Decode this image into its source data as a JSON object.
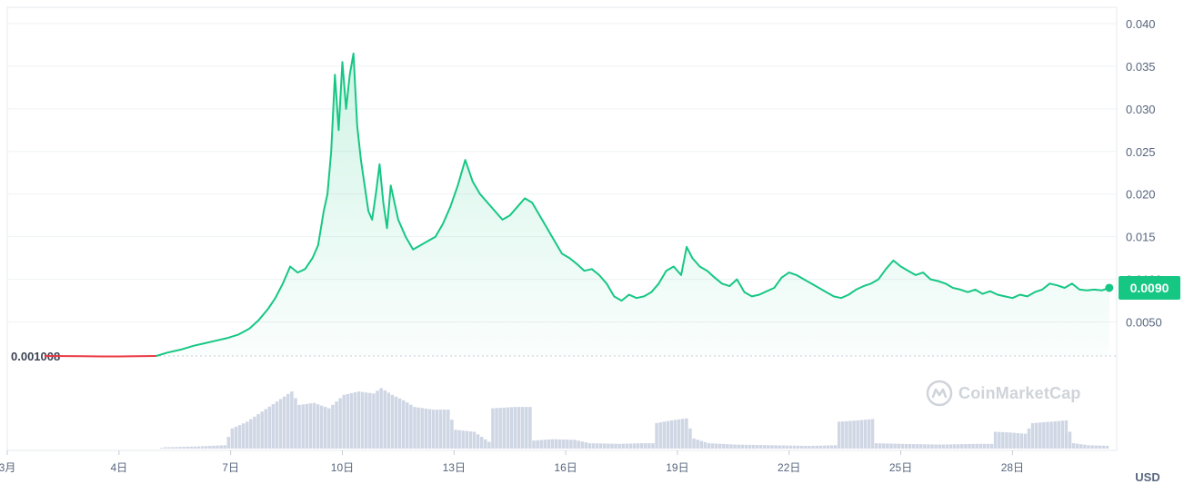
{
  "chart_data": {
    "type": "area",
    "x_tick_labels": [
      "3月",
      "4日",
      "7日",
      "10日",
      "13日",
      "16日",
      "19日",
      "22日",
      "25日",
      "28日"
    ],
    "x_tick_days": [
      1,
      4,
      7,
      10,
      13,
      16,
      19,
      22,
      25,
      28
    ],
    "y_tick_labels": [
      "0.040",
      "0.035",
      "0.030",
      "0.025",
      "0.020",
      "0.015",
      "0.0100",
      "0.0050"
    ],
    "y_tick_values": [
      0.04,
      0.035,
      0.03,
      0.025,
      0.02,
      0.015,
      0.01,
      0.005
    ],
    "ylim": [
      0,
      0.0415
    ],
    "xlim": [
      1,
      30.8
    ],
    "baseline_value": 0.001008,
    "baseline_label": "0.001008",
    "current_value_label": "0.0090",
    "unit_label": "USD",
    "colors": {
      "above_baseline": "#16c784",
      "below_baseline": "#ea3943",
      "volume": "#cfd6e4",
      "grid": "#eff2f5",
      "tick_text": "#58667e"
    },
    "grid": true,
    "series": [
      {
        "points": [
          [
            2.0,
            0.00101
          ],
          [
            2.5,
            0.001
          ],
          [
            3.0,
            0.00099
          ],
          [
            3.5,
            0.00095
          ],
          [
            4.0,
            0.00096
          ],
          [
            4.5,
            0.00098
          ],
          [
            5.0,
            0.00101
          ],
          [
            5.3,
            0.0014
          ],
          [
            5.7,
            0.0018
          ],
          [
            6.0,
            0.0022
          ],
          [
            6.3,
            0.0025
          ],
          [
            6.6,
            0.0028
          ],
          [
            6.9,
            0.0031
          ],
          [
            7.2,
            0.0035
          ],
          [
            7.5,
            0.0042
          ],
          [
            7.75,
            0.0052
          ],
          [
            8.0,
            0.0065
          ],
          [
            8.2,
            0.0078
          ],
          [
            8.4,
            0.0095
          ],
          [
            8.6,
            0.0115
          ],
          [
            8.8,
            0.0108
          ],
          [
            9.0,
            0.0112
          ],
          [
            9.2,
            0.0125
          ],
          [
            9.35,
            0.014
          ],
          [
            9.5,
            0.018
          ],
          [
            9.6,
            0.02
          ],
          [
            9.7,
            0.025
          ],
          [
            9.8,
            0.034
          ],
          [
            9.9,
            0.0275
          ],
          [
            10.0,
            0.0355
          ],
          [
            10.1,
            0.03
          ],
          [
            10.2,
            0.034
          ],
          [
            10.3,
            0.0365
          ],
          [
            10.4,
            0.028
          ],
          [
            10.5,
            0.024
          ],
          [
            10.6,
            0.021
          ],
          [
            10.7,
            0.018
          ],
          [
            10.8,
            0.017
          ],
          [
            10.9,
            0.02
          ],
          [
            11.0,
            0.0235
          ],
          [
            11.1,
            0.019
          ],
          [
            11.2,
            0.016
          ],
          [
            11.3,
            0.021
          ],
          [
            11.5,
            0.017
          ],
          [
            11.7,
            0.015
          ],
          [
            11.9,
            0.0135
          ],
          [
            12.1,
            0.014
          ],
          [
            12.3,
            0.0145
          ],
          [
            12.5,
            0.015
          ],
          [
            12.7,
            0.0165
          ],
          [
            12.9,
            0.0185
          ],
          [
            13.1,
            0.021
          ],
          [
            13.3,
            0.024
          ],
          [
            13.5,
            0.0215
          ],
          [
            13.7,
            0.02
          ],
          [
            13.9,
            0.019
          ],
          [
            14.1,
            0.018
          ],
          [
            14.3,
            0.017
          ],
          [
            14.5,
            0.0175
          ],
          [
            14.7,
            0.0185
          ],
          [
            14.9,
            0.0195
          ],
          [
            15.1,
            0.019
          ],
          [
            15.3,
            0.0175
          ],
          [
            15.5,
            0.016
          ],
          [
            15.7,
            0.0145
          ],
          [
            15.9,
            0.013
          ],
          [
            16.1,
            0.0125
          ],
          [
            16.3,
            0.0118
          ],
          [
            16.5,
            0.011
          ],
          [
            16.7,
            0.0112
          ],
          [
            16.9,
            0.0105
          ],
          [
            17.1,
            0.0095
          ],
          [
            17.3,
            0.008
          ],
          [
            17.5,
            0.0075
          ],
          [
            17.7,
            0.0082
          ],
          [
            17.9,
            0.0078
          ],
          [
            18.1,
            0.008
          ],
          [
            18.3,
            0.0085
          ],
          [
            18.5,
            0.0095
          ],
          [
            18.7,
            0.011
          ],
          [
            18.9,
            0.0115
          ],
          [
            19.1,
            0.0105
          ],
          [
            19.25,
            0.0138
          ],
          [
            19.4,
            0.0125
          ],
          [
            19.6,
            0.0115
          ],
          [
            19.8,
            0.011
          ],
          [
            20.0,
            0.0102
          ],
          [
            20.2,
            0.0095
          ],
          [
            20.4,
            0.0092
          ],
          [
            20.6,
            0.01
          ],
          [
            20.8,
            0.0085
          ],
          [
            21.0,
            0.008
          ],
          [
            21.2,
            0.0082
          ],
          [
            21.4,
            0.0086
          ],
          [
            21.6,
            0.009
          ],
          [
            21.8,
            0.0102
          ],
          [
            22.0,
            0.0108
          ],
          [
            22.2,
            0.0105
          ],
          [
            22.4,
            0.01
          ],
          [
            22.6,
            0.0095
          ],
          [
            22.8,
            0.009
          ],
          [
            23.0,
            0.0085
          ],
          [
            23.2,
            0.008
          ],
          [
            23.4,
            0.0078
          ],
          [
            23.6,
            0.0082
          ],
          [
            23.8,
            0.0088
          ],
          [
            24.0,
            0.0092
          ],
          [
            24.2,
            0.0095
          ],
          [
            24.4,
            0.01
          ],
          [
            24.6,
            0.0112
          ],
          [
            24.8,
            0.0122
          ],
          [
            25.0,
            0.0115
          ],
          [
            25.2,
            0.011
          ],
          [
            25.4,
            0.0105
          ],
          [
            25.6,
            0.0108
          ],
          [
            25.8,
            0.01
          ],
          [
            26.0,
            0.0098
          ],
          [
            26.2,
            0.0095
          ],
          [
            26.4,
            0.009
          ],
          [
            26.6,
            0.0088
          ],
          [
            26.8,
            0.0085
          ],
          [
            27.0,
            0.0088
          ],
          [
            27.2,
            0.0083
          ],
          [
            27.4,
            0.0086
          ],
          [
            27.6,
            0.0082
          ],
          [
            27.8,
            0.008
          ],
          [
            28.0,
            0.0078
          ],
          [
            28.2,
            0.0082
          ],
          [
            28.4,
            0.008
          ],
          [
            28.6,
            0.0085
          ],
          [
            28.8,
            0.0088
          ],
          [
            29.0,
            0.0095
          ],
          [
            29.2,
            0.0093
          ],
          [
            29.4,
            0.009
          ],
          [
            29.6,
            0.0095
          ],
          [
            29.8,
            0.0088
          ],
          [
            30.0,
            0.0087
          ],
          [
            30.2,
            0.0088
          ],
          [
            30.4,
            0.0087
          ],
          [
            30.6,
            0.009
          ]
        ]
      }
    ],
    "volume_relative": [
      [
        5.0,
        0.0
      ],
      [
        5.2,
        0.02
      ],
      [
        6.0,
        0.03
      ],
      [
        6.8,
        0.05
      ],
      [
        7.0,
        0.3
      ],
      [
        7.4,
        0.4
      ],
      [
        7.8,
        0.55
      ],
      [
        8.2,
        0.7
      ],
      [
        8.6,
        0.85
      ],
      [
        8.8,
        0.65
      ],
      [
        9.2,
        0.68
      ],
      [
        9.6,
        0.6
      ],
      [
        10.0,
        0.8
      ],
      [
        10.4,
        0.85
      ],
      [
        10.8,
        0.82
      ],
      [
        11.0,
        0.9
      ],
      [
        11.3,
        0.8
      ],
      [
        11.6,
        0.72
      ],
      [
        11.9,
        0.62
      ],
      [
        12.4,
        0.58
      ],
      [
        12.8,
        0.58
      ],
      [
        13.0,
        0.28
      ],
      [
        13.5,
        0.25
      ],
      [
        13.9,
        0.1
      ],
      [
        14.0,
        0.6
      ],
      [
        14.6,
        0.62
      ],
      [
        15.0,
        0.62
      ],
      [
        15.1,
        0.12
      ],
      [
        15.6,
        0.14
      ],
      [
        16.2,
        0.13
      ],
      [
        16.6,
        0.08
      ],
      [
        17.4,
        0.07
      ],
      [
        18.0,
        0.08
      ],
      [
        18.3,
        0.08
      ],
      [
        18.4,
        0.38
      ],
      [
        18.8,
        0.42
      ],
      [
        19.2,
        0.45
      ],
      [
        19.4,
        0.15
      ],
      [
        19.8,
        0.08
      ],
      [
        20.5,
        0.06
      ],
      [
        21.5,
        0.05
      ],
      [
        22.5,
        0.04
      ],
      [
        23.2,
        0.05
      ],
      [
        23.3,
        0.4
      ],
      [
        23.8,
        0.42
      ],
      [
        24.2,
        0.44
      ],
      [
        24.3,
        0.08
      ],
      [
        25.0,
        0.07
      ],
      [
        26.0,
        0.06
      ],
      [
        27.0,
        0.07
      ],
      [
        27.4,
        0.07
      ],
      [
        27.5,
        0.25
      ],
      [
        27.9,
        0.24
      ],
      [
        28.3,
        0.22
      ],
      [
        28.5,
        0.38
      ],
      [
        29.0,
        0.4
      ],
      [
        29.4,
        0.42
      ],
      [
        29.6,
        0.08
      ],
      [
        30.0,
        0.05
      ],
      [
        30.6,
        0.04
      ]
    ]
  },
  "watermark": "CoinMarketCap"
}
